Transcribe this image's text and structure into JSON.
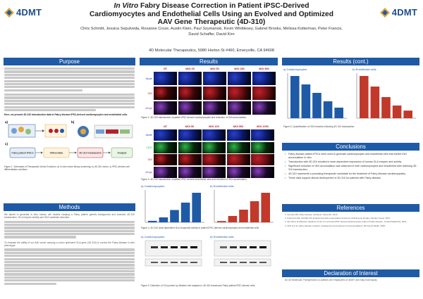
{
  "header": {
    "logo_left": "4DMT",
    "logo_right": "4DMT",
    "title_italic": "In Vitro",
    "title_rest_1": " Fabry Disease Correction in Patient iPSC-Derived",
    "title_line_2": "Cardiomyocytes and Endothelial Cells Using an Evolved and Optimized",
    "title_line_3": "AAV Gene Therapeutic (4D-310)",
    "authors_line_1": "Chris Schmitt, Jessica Sepulveda, Roxanne Croze, Austin Klein, Paul Szymanski, Kevin Whittlesey, Gabriel Brooks, Melissa Kotterman, Peter Francis,",
    "authors_line_2": "David Schaffer, David Kirn",
    "affiliation": "4D Molecular Therapeutics, 5980 Horton St #460, Emeryville, CA 94608"
  },
  "sections": {
    "purpose": "Purpose",
    "results": "Results",
    "results_cont": "Results (cont.)",
    "methods": "Methods",
    "conclusions": "Conclusions",
    "references": "References",
    "declaration": "Declaration of Interest"
  },
  "purpose": {
    "p1_bold": "Here, we present 4D-310 transduction data in Fabry disease iPSC-derived cardiomyocytes and endothelial cells.",
    "fig1_caption": "Figure 1. Schematic of Therapeutic Vector Evolution. a) In vitro vector library screening; b) 4D-310 vector; c) iPSC-derived cell differentiation workflow."
  },
  "fig1": {
    "panel_a": "a)",
    "panel_b": "b)",
    "panel_c": "c)",
    "step_1": "Fabry patient iPSCs",
    "step_2": "Differentiate",
    "step_3": "4D-310 transduction",
    "step_4": "Analysis"
  },
  "methods": {
    "p1": "We aimed to generate in vitro human cell models carrying a Fabry patient genetic background and examine 4D-310 transduction, GLA enzyme activity and Gb3 substrate reduction.",
    "p2": "To evaluate the ability of our AAV vector carrying a codon optimized GLA gene (4D-310) to correct the Fabry disease in vitro phenotype."
  },
  "results": {
    "fig2_top_labels": [
      "NT",
      "MOI 25",
      "MOI 50",
      "MOI 250",
      "MOI 500"
    ],
    "fig2_side_labels": [
      "Nuclei",
      "Gb3",
      "Merge"
    ],
    "fig2_caption": "Figure 2. 4D-310 transduction of patient iPSC-derived cardiomyocytes and reduction of Gb3 accumulation.",
    "fig3_top_labels": [
      "NT",
      "MOI 50",
      "MOI 100",
      "MOI 500",
      "MOI 1000"
    ],
    "fig3_side_labels": [
      "Nuclei",
      "CD31",
      "Gb3",
      "Merge"
    ],
    "fig3_caption": "Figure 3. 4D-310 transduction of patient iPSC-derived endothelial cells and reduction of Gb3 accumulation.",
    "fig4_a_title": "a) Cardiomyocytes",
    "fig4_b_title": "b) Endothelial cells",
    "fig4_caption": "Figure 4. 4D-310 dose-dependent GLA enzymatic activity in patient iPSC-derived cardiomyocytes and endothelial cells.",
    "fig5_a_title": "a) Cardiomyocytes",
    "fig5_b_title": "b) Endothelial cells",
    "fig5_caption": "Figure 5. Detection of GLA protein by Western blot analysis in 4D-310 transduced Fabry patient iPSC-derived cells.",
    "fig6_a_title": "a) Cardiomyocytes",
    "fig6_b_title": "b) Endothelial cells",
    "fig6_caption": "Figure 6. Quantification of Gb3 reduction following 4D-310 transduction."
  },
  "conclusions": {
    "bullets": [
      "Fabry disease patient iPSCs were used to generate cardiomyocytes and endothelial cells that exhibit Gb3 accumulation in vitro.",
      "Transduction with 4D-310 resulted in dose-dependent expression of human GLA enzyme and activity.",
      "Significant reduction of Gb3 accumulation was observed in both cardiomyocytes and endothelial cells following 4D-310 transduction.",
      "4D-310 represents a promising therapeutic candidate for the treatment of Fabry disease cardiomyopathy.",
      "These data support clinical development of 4D-310 for patients with Fabry disease."
    ]
  },
  "references": {
    "items": [
      "1. Germain DP. Fabry disease. Orphanet J Rare Dis. 2010.",
      "2. Kotterman MA, Schaffer DV. Engineering adeno-associated viruses for clinical gene therapy. Nat Rev Genet. 2014.",
      "3. Itier JM et al. Effective clearance of GL-3 in a human iPSC-derived cardiomyocyte model of Fabry disease. J Inherit Metab Dis. 2014.",
      "4. Ortiz A et al. Fabry disease revisited: management and treatment recommendations. Mol Genet Metab. 2018."
    ]
  },
  "declaration": {
    "text": "All 4D Molecular Therapeutics co-authors are employees of 4DMT and may hold equity."
  },
  "colors": {
    "accent": "#1f5aa6",
    "bar_cm": "#1f5aa6",
    "bar_ec": "#c0392b"
  }
}
